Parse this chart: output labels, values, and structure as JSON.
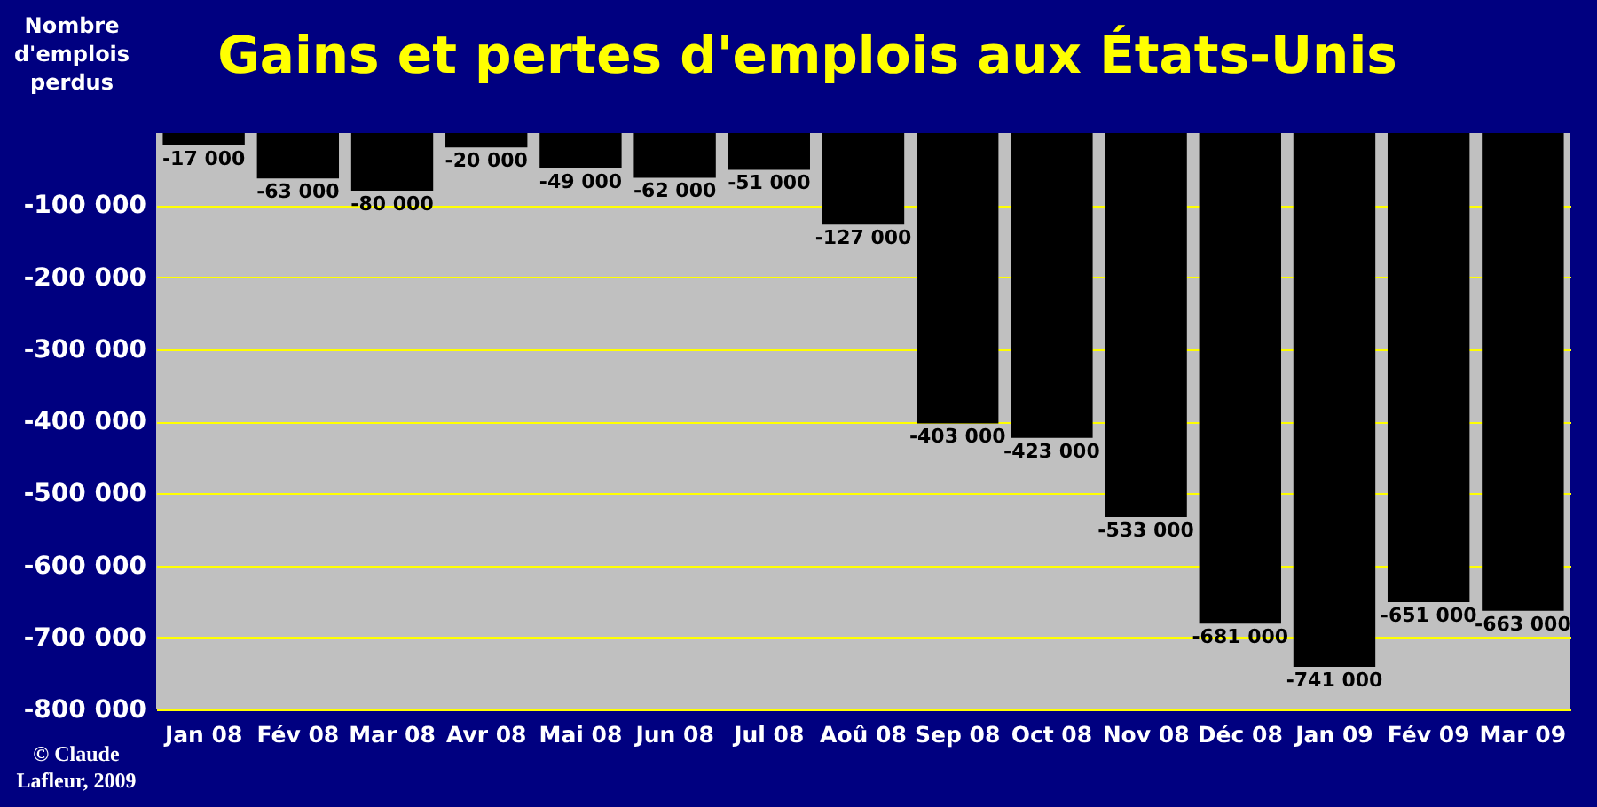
{
  "chart_data": {
    "type": "bar",
    "title": "Gains et pertes d'emplois aux États-Unis",
    "ylabel": "Nombre d'emplois perdus",
    "categories": [
      "Jan 08",
      "Fév 08",
      "Mar 08",
      "Avr 08",
      "Mai 08",
      "Jun 08",
      "Jul 08",
      "Aoû 08",
      "Sep 08",
      "Oct 08",
      "Nov 08",
      "Déc 08",
      "Jan 09",
      "Fév 09",
      "Mar 09"
    ],
    "values": [
      -17000,
      -63000,
      -80000,
      -20000,
      -49000,
      -62000,
      -51000,
      -127000,
      -403000,
      -423000,
      -533000,
      -681000,
      -741000,
      -651000,
      -663000
    ],
    "value_labels": [
      "-17 000",
      "-63 000",
      "-80 000",
      "-20 000",
      "-49 000",
      "-62 000",
      "-51 000",
      "-127 000",
      "-403 000",
      "-423 000",
      "-533 000",
      "-681 000",
      "-741 000",
      "-651 000",
      "-663 000"
    ],
    "color": "#000000",
    "ylim": [
      -800000,
      0
    ],
    "yticks": [
      {
        "value": -100000,
        "label": "-100 000"
      },
      {
        "value": -200000,
        "label": "-200 000"
      },
      {
        "value": -300000,
        "label": "-300 000"
      },
      {
        "value": -400000,
        "label": "-400 000"
      },
      {
        "value": -500000,
        "label": "-500 000"
      },
      {
        "value": -600000,
        "label": "-600 000"
      },
      {
        "value": -700000,
        "label": "-700 000"
      },
      {
        "value": -800000,
        "label": "-800 000"
      }
    ],
    "grid": "y",
    "annotations": [
      "© Claude Lafleur, 2009"
    ]
  }
}
